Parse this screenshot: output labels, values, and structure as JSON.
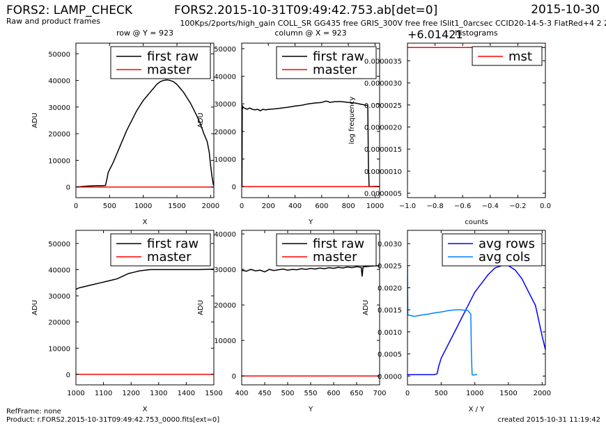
{
  "header": {
    "title_left": "FORS2: LAMP_CHECK",
    "subtitle_left": "Raw and product frames",
    "title_center": "FORS2.2015-10-31T09:49:42.753.ab[det=0]",
    "title_right": "2015-10-30",
    "instrument_line": "100Kps/2ports/high_gain COLL_SR GG435 free GRIS_300V free free lSlit1_0arcsec CCID20-14-5-3 FlatRed+4 2 2"
  },
  "footer": {
    "refframe": "RefFrame: none",
    "product": "Product: r.FORS2.2015-10-31T09:49:42.753_0000.fits[ext=0]",
    "created": "created 2015-10-31 11:19:42"
  },
  "colors": {
    "raw": "#000000",
    "master": "#ff0000",
    "mst": "#ff0000",
    "avg_rows": "#0000ff",
    "avg_cols": "#0080ff",
    "axis": "#000000"
  },
  "chart_data": [
    {
      "id": "row_full",
      "type": "line",
      "title": "row @ Y = 923",
      "xlabel": "X",
      "ylabel": "ADU",
      "xlim": [
        0,
        2048
      ],
      "ylim": [
        -4000,
        54000
      ],
      "xticks": [
        0,
        500,
        1000,
        1500,
        2000
      ],
      "yticks": [
        0,
        10000,
        20000,
        30000,
        40000,
        50000
      ],
      "legend": "top-right",
      "series": [
        {
          "name": "first raw",
          "color": "#000000",
          "x": [
            0,
            100,
            200,
            300,
            400,
            440,
            460,
            480,
            500,
            550,
            600,
            650,
            700,
            750,
            800,
            850,
            900,
            950,
            1000,
            1050,
            1100,
            1150,
            1200,
            1250,
            1300,
            1350,
            1400,
            1450,
            1500,
            1550,
            1600,
            1650,
            1700,
            1750,
            1800,
            1850,
            1900,
            1950,
            1980,
            2000,
            2020,
            2040,
            2048
          ],
          "y": [
            0,
            200,
            400,
            500,
            500,
            600,
            3000,
            5500,
            6500,
            9000,
            12000,
            15000,
            18000,
            21000,
            23500,
            26000,
            28500,
            30500,
            32500,
            34000,
            35500,
            37000,
            38500,
            39500,
            40000,
            40200,
            40000,
            39500,
            38500,
            37000,
            35500,
            33500,
            31500,
            29000,
            26500,
            23500,
            20000,
            17000,
            13000,
            8000,
            4000,
            1000,
            500
          ]
        },
        {
          "name": "master",
          "color": "#ff0000",
          "x": [
            0,
            2048
          ],
          "y": [
            0,
            0
          ]
        }
      ]
    },
    {
      "id": "col_full",
      "type": "line",
      "title": "column @ X = 923",
      "xlabel": "Y",
      "ylabel": "ADU",
      "xlim": [
        0,
        1034
      ],
      "ylim": [
        -4000,
        52000
      ],
      "xticks": [
        0,
        200,
        400,
        600,
        800,
        1000
      ],
      "yticks": [
        0,
        10000,
        20000,
        30000,
        40000,
        50000
      ],
      "legend": "top-right",
      "series": [
        {
          "name": "first raw",
          "color": "#000000",
          "x": [
            0,
            2,
            4,
            6,
            8,
            10,
            20,
            40,
            60,
            80,
            100,
            120,
            140,
            160,
            180,
            200,
            250,
            300,
            350,
            400,
            450,
            500,
            550,
            600,
            630,
            650,
            660,
            700,
            750,
            800,
            850,
            900,
            930,
            945,
            950,
            955,
            960,
            980,
            1000,
            1034
          ],
          "y": [
            40000,
            0,
            28500,
            28000,
            29000,
            28800,
            28500,
            28000,
            28500,
            28000,
            27800,
            28000,
            27500,
            28000,
            27800,
            28000,
            28200,
            28500,
            28800,
            29200,
            29500,
            30000,
            30300,
            30500,
            31000,
            30800,
            30500,
            30800,
            30800,
            30500,
            30300,
            29800,
            29500,
            29500,
            8000,
            0,
            0,
            0,
            100,
            0
          ]
        },
        {
          "name": "master",
          "color": "#ff0000",
          "x": [
            0,
            1034
          ],
          "y": [
            0,
            0
          ]
        }
      ]
    },
    {
      "id": "hist",
      "type": "line",
      "title": "histograms",
      "offset_label": "+6.01421",
      "xlabel": "counts",
      "ylabel": "log frequency",
      "xlim": [
        -1.0,
        0.0
      ],
      "ylim": [
        4e-07,
        3.9e-06
      ],
      "xticks": [
        -1.0,
        -0.8,
        -0.6,
        -0.4,
        -0.2,
        0.0
      ],
      "xtick_labels": [
        "−1.0",
        "−0.8",
        "−0.6",
        "−0.4",
        "−0.2",
        "0.0"
      ],
      "yticks": [
        5e-07,
        1e-06,
        1.5e-06,
        2e-06,
        2.5e-06,
        3e-06,
        3.5e-06
      ],
      "ytick_labels": [
        "0.0000005",
        "0.0000010",
        "0.0000015",
        "0.0000020",
        "0.0000025",
        "0.0000030",
        "0.0000035"
      ],
      "legend": "top-right",
      "series": [
        {
          "name": "mst",
          "color": "#ff0000",
          "x": [
            -1.0,
            0.0
          ],
          "y": [
            3.8e-06,
            3.8e-06
          ]
        }
      ]
    },
    {
      "id": "row_zoom",
      "type": "line",
      "title": "",
      "xlabel": "X",
      "ylabel": "ADU",
      "xlim": [
        1000,
        1500
      ],
      "ylim": [
        -4000,
        55000
      ],
      "xticks": [
        1000,
        1100,
        1200,
        1300,
        1400,
        1500
      ],
      "yticks": [
        0,
        10000,
        20000,
        30000,
        40000,
        50000
      ],
      "legend": "top-right",
      "series": [
        {
          "name": "first raw",
          "color": "#000000",
          "x": [
            1000,
            1010,
            1030,
            1050,
            1070,
            1090,
            1110,
            1130,
            1150,
            1170,
            1190,
            1210,
            1230,
            1250,
            1270,
            1300,
            1350,
            1400,
            1450,
            1500
          ],
          "y": [
            32500,
            33000,
            33500,
            34000,
            34500,
            35000,
            35500,
            36000,
            36500,
            37500,
            38500,
            39000,
            39500,
            39800,
            40000,
            40000,
            40000,
            40000,
            40000,
            40200
          ]
        },
        {
          "name": "master",
          "color": "#ff0000",
          "x": [
            1000,
            1500
          ],
          "y": [
            0,
            0
          ]
        }
      ]
    },
    {
      "id": "col_zoom",
      "type": "line",
      "title": "",
      "xlabel": "Y",
      "ylabel": "ADU",
      "xlim": [
        400,
        700
      ],
      "ylim": [
        -2500,
        41000
      ],
      "xticks": [
        400,
        450,
        500,
        550,
        600,
        650,
        700
      ],
      "yticks": [
        0,
        10000,
        20000,
        30000,
        40000
      ],
      "legend": "top-right",
      "series": [
        {
          "name": "first raw",
          "color": "#000000",
          "x": [
            400,
            410,
            420,
            430,
            440,
            450,
            460,
            470,
            480,
            490,
            500,
            510,
            520,
            530,
            540,
            550,
            560,
            570,
            580,
            590,
            600,
            610,
            620,
            630,
            640,
            650,
            660,
            662,
            664,
            670,
            680,
            690,
            700
          ],
          "y": [
            29800,
            29500,
            30000,
            29600,
            29800,
            29300,
            30000,
            29700,
            29900,
            30100,
            29800,
            30000,
            29900,
            30200,
            30000,
            30300,
            30100,
            30400,
            30200,
            30500,
            30300,
            30600,
            30400,
            30700,
            30500,
            30800,
            30600,
            28000,
            30700,
            30800,
            30900,
            31000,
            31000
          ]
        },
        {
          "name": "master",
          "color": "#ff0000",
          "x": [
            400,
            700
          ],
          "y": [
            0,
            0
          ]
        }
      ]
    },
    {
      "id": "avg",
      "type": "line",
      "title": "",
      "xlabel": "X / Y",
      "ylabel": "ADU",
      "xlim": [
        0,
        2048
      ],
      "ylim": [
        -0.0002,
        0.0033
      ],
      "xticks": [
        0,
        500,
        1000,
        1500,
        2000
      ],
      "yticks": [
        0.0,
        0.0005,
        0.001,
        0.0015,
        0.002,
        0.0025,
        0.003
      ],
      "ytick_labels": [
        "0.0000",
        "0.0005",
        "0.0010",
        "0.0015",
        "0.0020",
        "0.0025",
        "0.0030"
      ],
      "legend": "top-right",
      "series": [
        {
          "name": "avg rows",
          "color": "#0000ff",
          "x": [
            0,
            100,
            200,
            300,
            400,
            440,
            460,
            480,
            500,
            600,
            700,
            800,
            900,
            1000,
            1100,
            1200,
            1300,
            1400,
            1500,
            1600,
            1700,
            1800,
            1900,
            2000,
            2048
          ],
          "y": [
            3e-05,
            3e-05,
            3e-05,
            3e-05,
            3e-05,
            5e-05,
            0.0002,
            0.0003,
            0.0004,
            0.0007,
            0.001,
            0.0013,
            0.0016,
            0.0019,
            0.0021,
            0.0023,
            0.00245,
            0.0025,
            0.0025,
            0.0024,
            0.0022,
            0.0019,
            0.0016,
            0.0009,
            0.0006
          ]
        },
        {
          "name": "avg cols",
          "color": "#0080ff",
          "x": [
            0,
            5,
            10,
            50,
            100,
            200,
            300,
            400,
            500,
            600,
            700,
            800,
            900,
            940,
            950,
            960,
            980,
            1000,
            1034
          ],
          "y": [
            0.0025,
            0.0014,
            0.00138,
            0.00137,
            0.00135,
            0.00138,
            0.0014,
            0.00143,
            0.00145,
            0.00148,
            0.0015,
            0.0015,
            0.00148,
            0.0014,
            0.0005,
            3e-05,
            2e-05,
            3e-05,
            3e-05
          ]
        }
      ]
    }
  ]
}
